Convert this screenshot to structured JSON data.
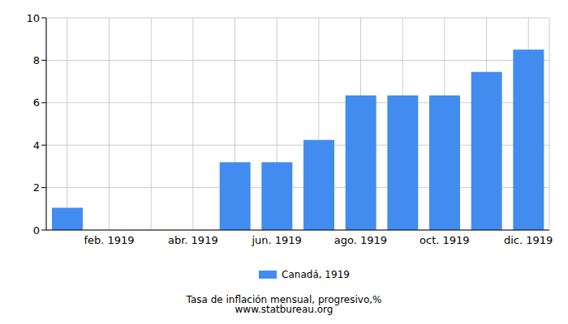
{
  "chart_data": {
    "type": "bar",
    "title": "Tasa de inflación mensual, progresivo,%",
    "subtitle": "www.statbureau.org",
    "categories": [
      null,
      "feb. 1919",
      null,
      "abr. 1919",
      null,
      "jun. 1919",
      null,
      "ago. 1919",
      null,
      "oct. 1919",
      null,
      "dic. 1919"
    ],
    "series": [
      {
        "name": "Canadá, 1919",
        "color": "#428cf0",
        "values": [
          1.05,
          0,
          0,
          0,
          3.2,
          3.2,
          4.25,
          6.35,
          6.35,
          6.35,
          7.45,
          8.5
        ]
      }
    ],
    "ylim": [
      0,
      10
    ],
    "yticks": [
      0,
      2,
      4,
      6,
      8,
      10
    ],
    "grid": true,
    "legend": "bottom"
  }
}
